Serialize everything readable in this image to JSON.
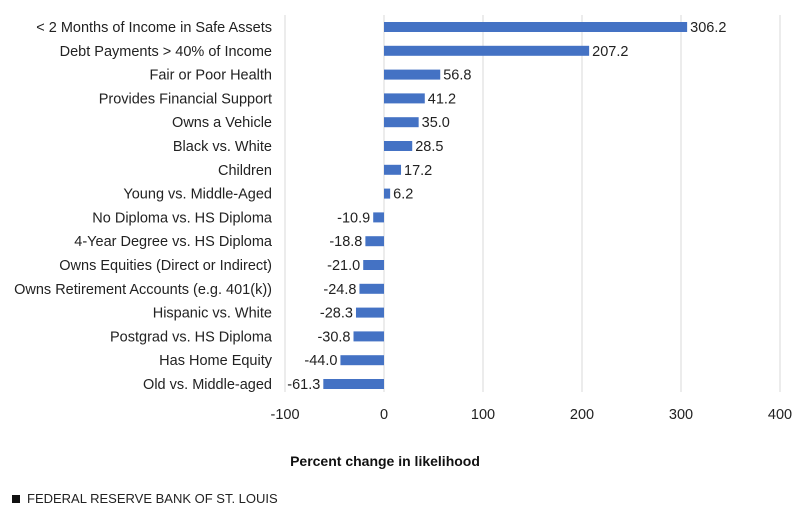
{
  "chart_data": {
    "type": "bar",
    "orientation": "horizontal",
    "categories": [
      "< 2 Months of Income in Safe Assets",
      "Debt Payments > 40% of Income",
      "Fair or Poor Health",
      "Provides Financial Support",
      "Owns a Vehicle",
      "Black vs. White",
      "Children",
      "Young vs. Middle-Aged",
      "No Diploma vs. HS Diploma",
      "4-Year Degree vs. HS Diploma",
      "Owns Equities (Direct or Indirect)",
      "Owns Retirement Accounts (e.g. 401(k))",
      "Hispanic vs. White",
      "Postgrad vs. HS Diploma",
      "Has Home Equity",
      "Old vs. Middle-aged"
    ],
    "values": [
      306.2,
      207.2,
      56.8,
      41.2,
      35.0,
      28.5,
      17.2,
      6.2,
      -10.9,
      -18.8,
      -21.0,
      -24.8,
      -28.3,
      -30.8,
      -44.0,
      -61.3
    ],
    "value_labels": [
      "306.2",
      "207.2",
      "56.8",
      "41.2",
      "35.0",
      "28.5",
      "17.2",
      "6.2",
      "-10.9",
      "-18.8",
      "-21.0",
      "-24.8",
      "-28.3",
      "-30.8",
      "-44.0",
      "-61.3"
    ],
    "xlabel": "Percent change in likelihood",
    "xlim": [
      -100,
      400
    ],
    "xticks": [
      -100,
      0,
      100,
      200,
      300,
      400
    ],
    "xtick_labels": [
      "-100",
      "0",
      "100",
      "200",
      "300",
      "400"
    ],
    "grid": "vertical",
    "bar_color": "#4472C4",
    "grid_color": "#d9d9d9",
    "legend": "none"
  },
  "source": {
    "text": "FEDERAL RESERVE BANK OF ST. LOUIS"
  }
}
